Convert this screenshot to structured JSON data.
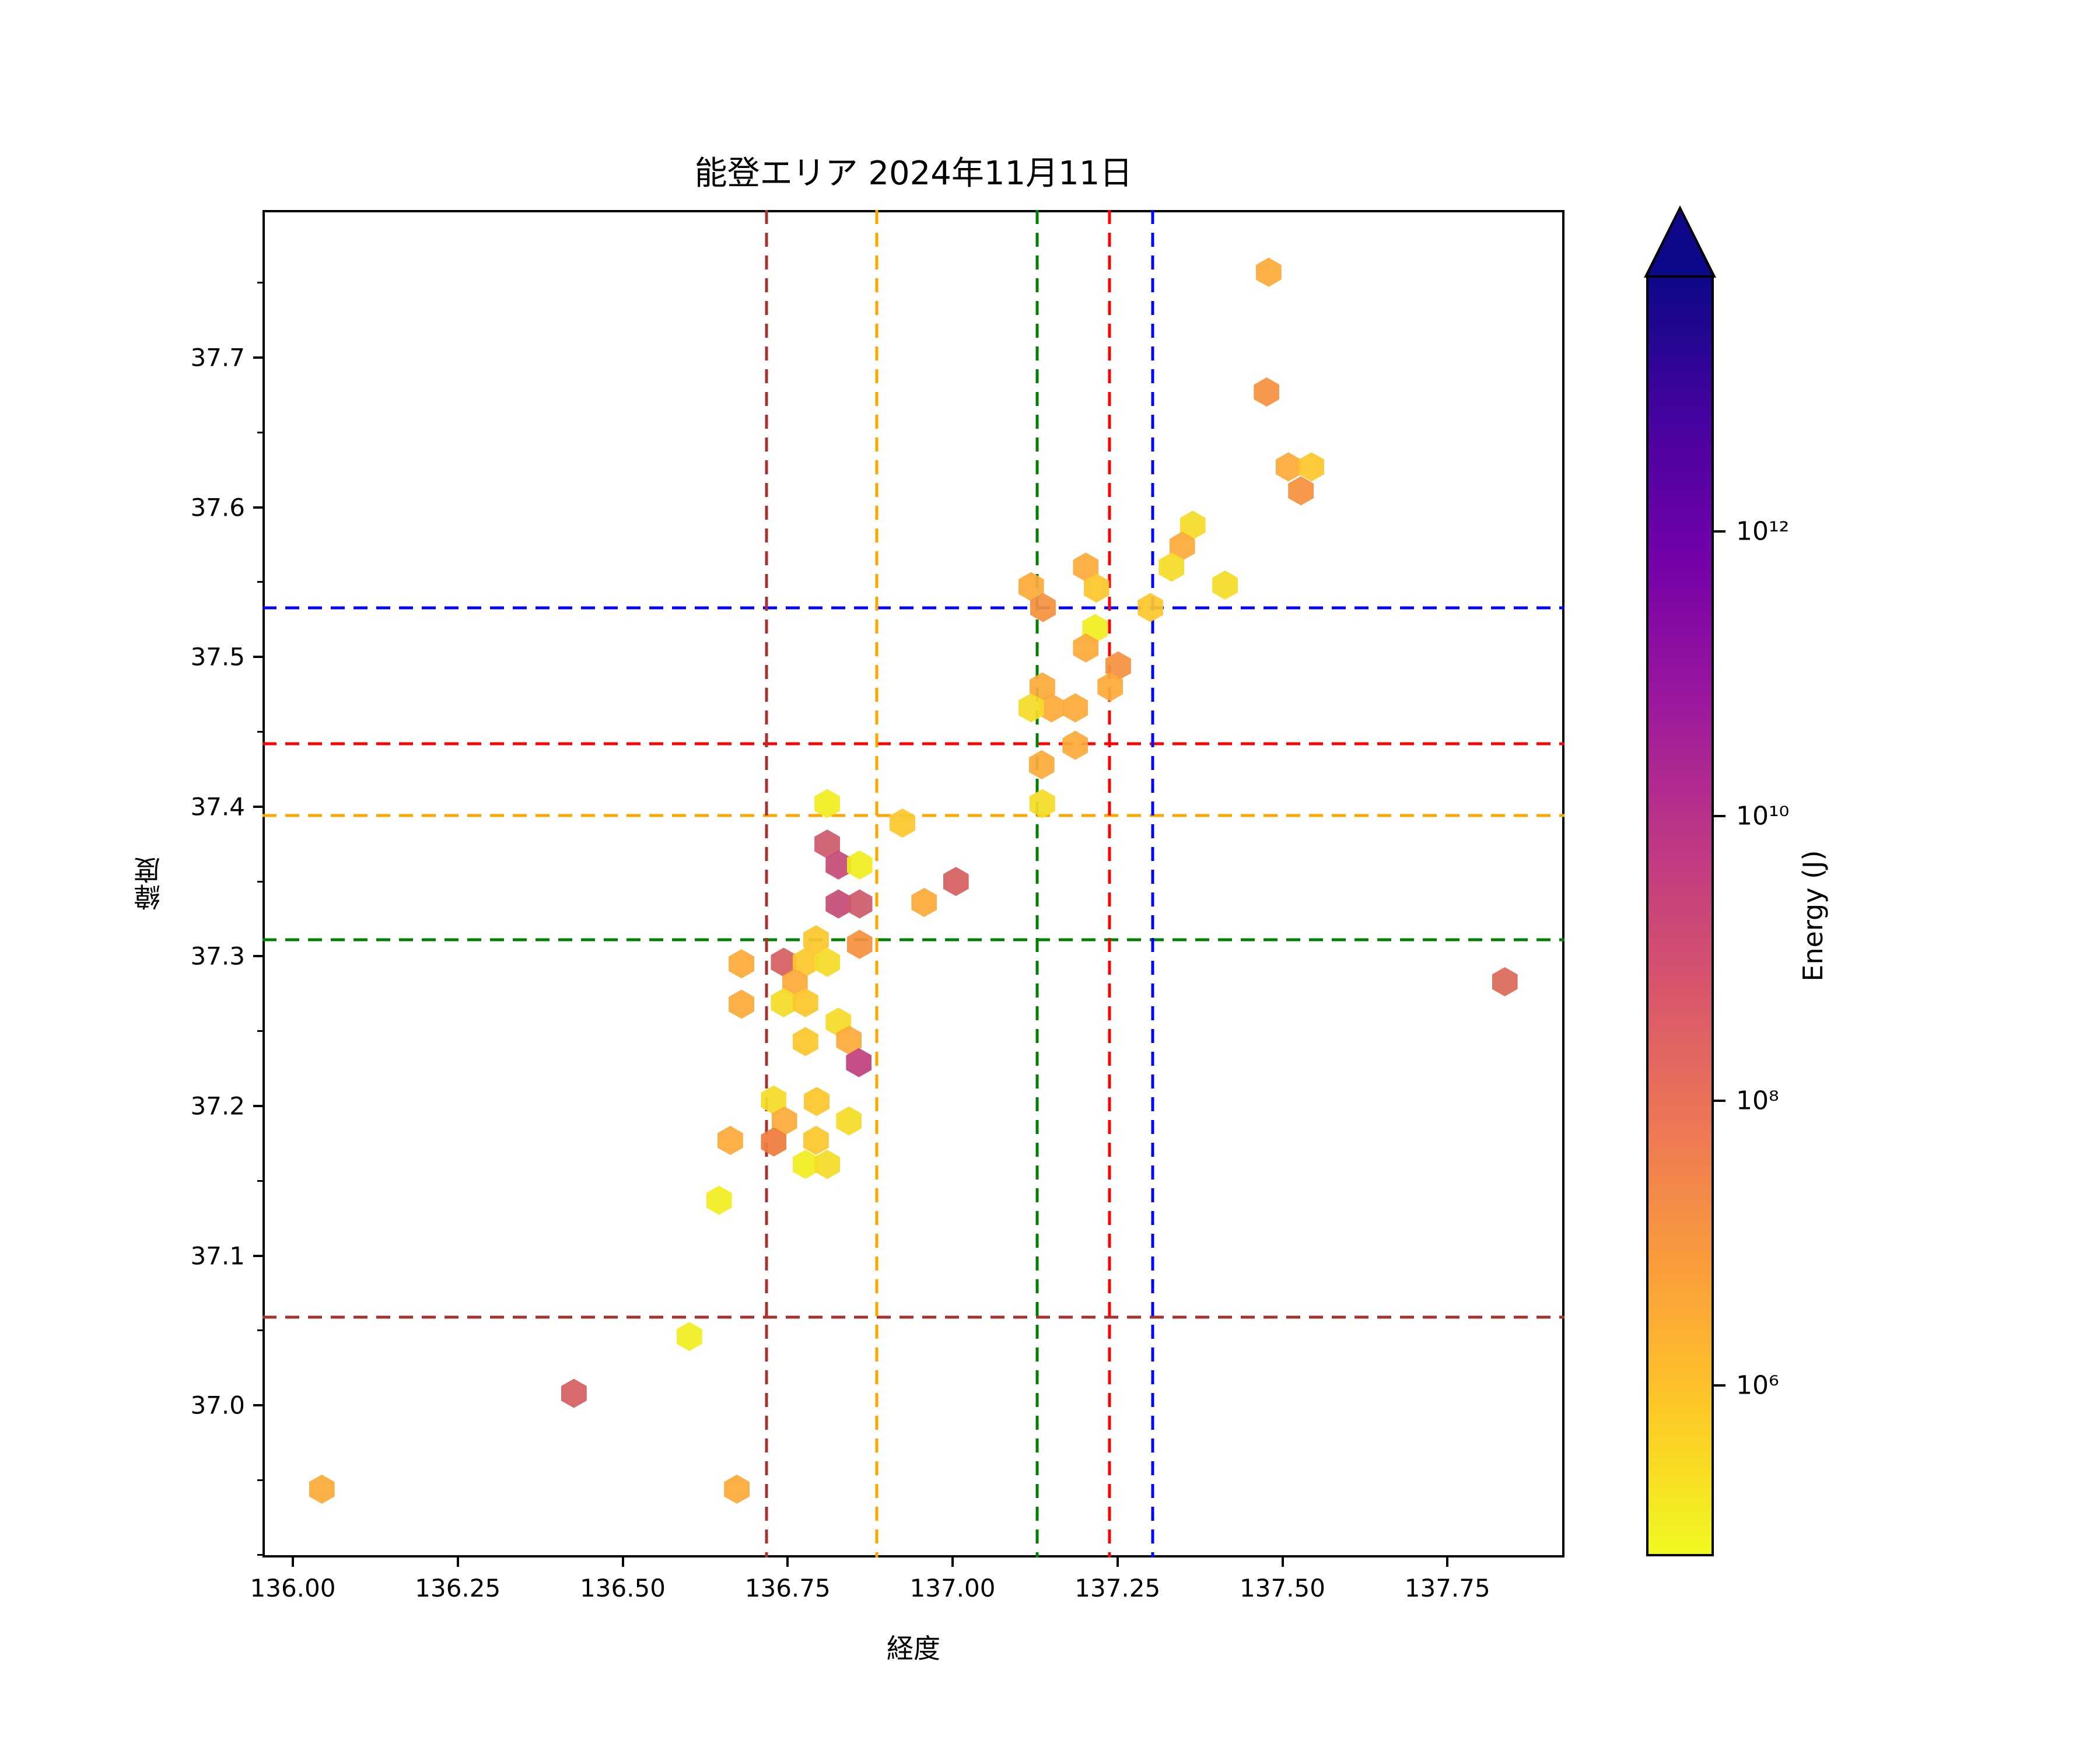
{
  "title": "能登エリア 2024年11月11日",
  "chart_data": {
    "type": "scatter",
    "marker": "hexagon",
    "title": "能登エリア 2024年11月11日",
    "xlabel": "経度",
    "ylabel": "緯度",
    "xlim": [
      135.954,
      137.928
    ],
    "ylim": [
      36.898,
      37.799
    ],
    "x_ticks": [
      136.0,
      136.25,
      136.5,
      136.75,
      137.0,
      137.25,
      137.5,
      137.75
    ],
    "x_tick_labels": [
      "136.00",
      "136.25",
      "136.50",
      "136.75",
      "137.00",
      "137.25",
      "137.50",
      "137.75"
    ],
    "y_ticks": [
      37.0,
      37.1,
      37.2,
      37.3,
      37.4,
      37.5,
      37.6,
      37.7
    ],
    "y_tick_labels": [
      "37.0",
      "37.1",
      "37.2",
      "37.3",
      "37.4",
      "37.5",
      "37.6",
      "37.7"
    ],
    "y_minor_ticks": [
      36.9,
      36.95,
      37.05,
      37.15,
      37.25,
      37.35,
      37.45,
      37.55,
      37.65,
      37.75
    ],
    "grid": false,
    "colorbar": {
      "label": "Energy (J)",
      "scale": "log",
      "colormap": "plasma_r",
      "extend": "max",
      "tick_labels": [
        "10¹²",
        "10¹⁰",
        "10⁸",
        "10⁶"
      ],
      "ticks_log10": [
        12,
        10,
        8,
        6
      ],
      "range_log10": [
        4.8,
        13.8
      ],
      "gradient_top_to_bottom": [
        "#0d0887",
        "#46039f",
        "#7201a8",
        "#9c179e",
        "#bd3786",
        "#d8576b",
        "#ed7953",
        "#fb9f3a",
        "#fdca26",
        "#f0f921"
      ]
    },
    "reference_lines": {
      "vertical": [
        {
          "name": "darkred-vline",
          "color": "#a8322e",
          "lon": 136.718
        },
        {
          "name": "orange-vline",
          "color": "#ffa500",
          "lon": 136.885
        },
        {
          "name": "green-vline",
          "color": "#008000",
          "lon": 137.128
        },
        {
          "name": "red-vline",
          "color": "#ff0000",
          "lon": 137.238
        },
        {
          "name": "blue-vline",
          "color": "#0000ff",
          "lon": 137.303
        }
      ],
      "horizontal": [
        {
          "name": "blue-hline",
          "color": "#0000ff",
          "lat": 37.533
        },
        {
          "name": "red-hline",
          "color": "#ff0000",
          "lat": 37.442
        },
        {
          "name": "orange-hline",
          "color": "#ffa500",
          "lat": 37.394
        },
        {
          "name": "green-hline",
          "color": "#008000",
          "lat": 37.311
        },
        {
          "name": "darkred-hline",
          "color": "#a8322e",
          "lat": 37.059
        }
      ]
    },
    "palette": {
      "bright-yellow": "#f0ee20",
      "yellow": "#f4dd27",
      "gold": "#fcc72c",
      "orange": "#fbaa3a",
      "deep-orange": "#f59140",
      "burnt-orange": "#ee7c3d",
      "salmon": "#dc6a58",
      "red": "#d65f60",
      "red-pink": "#cd5a6d",
      "dark-pink": "#c64c78",
      "magenta": "#c2417e"
    },
    "points": [
      {
        "lon": 137.479,
        "lat": 37.757,
        "c": "orange"
      },
      {
        "lon": 137.476,
        "lat": 37.677,
        "c": "deep-orange"
      },
      {
        "lon": 137.509,
        "lat": 37.627,
        "c": "orange"
      },
      {
        "lon": 137.544,
        "lat": 37.627,
        "c": "gold"
      },
      {
        "lon": 137.528,
        "lat": 37.611,
        "c": "deep-orange"
      },
      {
        "lon": 137.364,
        "lat": 37.588,
        "c": "yellow"
      },
      {
        "lon": 137.348,
        "lat": 37.574,
        "c": "orange"
      },
      {
        "lon": 137.332,
        "lat": 37.56,
        "c": "yellow"
      },
      {
        "lon": 137.413,
        "lat": 37.548,
        "c": "yellow"
      },
      {
        "lon": 137.3,
        "lat": 37.533,
        "c": "gold"
      },
      {
        "lon": 137.202,
        "lat": 37.56,
        "c": "orange"
      },
      {
        "lon": 137.218,
        "lat": 37.546,
        "c": "gold"
      },
      {
        "lon": 137.119,
        "lat": 37.547,
        "c": "orange"
      },
      {
        "lon": 137.137,
        "lat": 37.533,
        "c": "deep-orange"
      },
      {
        "lon": 137.216,
        "lat": 37.519,
        "c": "bright-yellow"
      },
      {
        "lon": 137.202,
        "lat": 37.506,
        "c": "orange"
      },
      {
        "lon": 137.251,
        "lat": 37.494,
        "c": "deep-orange"
      },
      {
        "lon": 137.239,
        "lat": 37.48,
        "c": "orange"
      },
      {
        "lon": 137.136,
        "lat": 37.48,
        "c": "orange"
      },
      {
        "lon": 137.15,
        "lat": 37.466,
        "c": "orange"
      },
      {
        "lon": 137.119,
        "lat": 37.466,
        "c": "yellow"
      },
      {
        "lon": 137.186,
        "lat": 37.466,
        "c": "orange"
      },
      {
        "lon": 137.186,
        "lat": 37.441,
        "c": "orange"
      },
      {
        "lon": 137.135,
        "lat": 37.428,
        "c": "orange"
      },
      {
        "lon": 137.136,
        "lat": 37.402,
        "c": "yellow"
      },
      {
        "lon": 136.957,
        "lat": 37.336,
        "c": "orange"
      },
      {
        "lon": 137.005,
        "lat": 37.35,
        "c": "red"
      },
      {
        "lon": 136.924,
        "lat": 37.389,
        "c": "gold"
      },
      {
        "lon": 136.81,
        "lat": 37.402,
        "c": "bright-yellow"
      },
      {
        "lon": 136.81,
        "lat": 37.375,
        "c": "red-pink"
      },
      {
        "lon": 136.827,
        "lat": 37.361,
        "c": "dark-pink"
      },
      {
        "lon": 136.859,
        "lat": 37.361,
        "c": "bright-yellow"
      },
      {
        "lon": 136.827,
        "lat": 37.335,
        "c": "dark-pink"
      },
      {
        "lon": 136.859,
        "lat": 37.335,
        "c": "red-pink"
      },
      {
        "lon": 136.793,
        "lat": 37.311,
        "c": "gold"
      },
      {
        "lon": 136.859,
        "lat": 37.308,
        "c": "deep-orange"
      },
      {
        "lon": 136.744,
        "lat": 37.296,
        "c": "red"
      },
      {
        "lon": 136.777,
        "lat": 37.296,
        "c": "gold"
      },
      {
        "lon": 136.81,
        "lat": 37.296,
        "c": "yellow"
      },
      {
        "lon": 136.761,
        "lat": 37.282,
        "c": "orange"
      },
      {
        "lon": 136.744,
        "lat": 37.269,
        "c": "yellow"
      },
      {
        "lon": 136.777,
        "lat": 37.269,
        "c": "gold"
      },
      {
        "lon": 136.68,
        "lat": 37.295,
        "c": "orange"
      },
      {
        "lon": 136.68,
        "lat": 37.268,
        "c": "orange"
      },
      {
        "lon": 136.827,
        "lat": 37.256,
        "c": "yellow"
      },
      {
        "lon": 136.777,
        "lat": 37.243,
        "c": "gold"
      },
      {
        "lon": 136.843,
        "lat": 37.244,
        "c": "orange"
      },
      {
        "lon": 136.858,
        "lat": 37.229,
        "c": "magenta"
      },
      {
        "lon": 136.729,
        "lat": 37.204,
        "c": "yellow"
      },
      {
        "lon": 136.794,
        "lat": 37.203,
        "c": "gold"
      },
      {
        "lon": 136.745,
        "lat": 37.19,
        "c": "orange"
      },
      {
        "lon": 136.843,
        "lat": 37.19,
        "c": "yellow"
      },
      {
        "lon": 136.729,
        "lat": 37.176,
        "c": "burnt-orange"
      },
      {
        "lon": 136.793,
        "lat": 37.177,
        "c": "gold"
      },
      {
        "lon": 136.663,
        "lat": 37.177,
        "c": "orange"
      },
      {
        "lon": 136.777,
        "lat": 37.161,
        "c": "bright-yellow"
      },
      {
        "lon": 136.81,
        "lat": 37.161,
        "c": "yellow"
      },
      {
        "lon": 136.646,
        "lat": 37.137,
        "c": "bright-yellow"
      },
      {
        "lon": 136.601,
        "lat": 37.046,
        "c": "bright-yellow"
      },
      {
        "lon": 136.426,
        "lat": 37.008,
        "c": "red"
      },
      {
        "lon": 136.044,
        "lat": 36.944,
        "c": "orange"
      },
      {
        "lon": 136.673,
        "lat": 36.944,
        "c": "orange"
      },
      {
        "lon": 137.837,
        "lat": 37.283,
        "c": "salmon"
      }
    ]
  }
}
